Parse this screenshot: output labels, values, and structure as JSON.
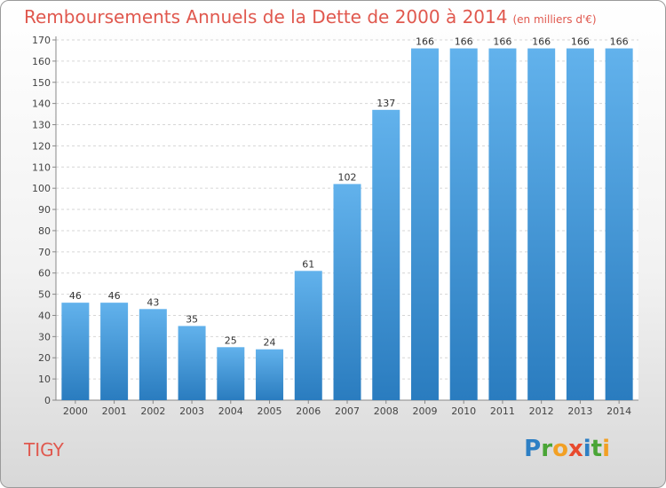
{
  "title": "Remboursements Annuels de la Dette de 2000 à 2014",
  "subtitle": "(en milliers d'€)",
  "commune": "TIGY",
  "logo": {
    "letters": [
      "P",
      "r",
      "o",
      "x",
      "i",
      "t",
      "i"
    ],
    "colors": [
      "#2d7fc4",
      "#4aa536",
      "#f2a024",
      "#e84a2e",
      "#2d7fc4",
      "#4aa536",
      "#f2a024"
    ]
  },
  "colors": {
    "bar_light": "#62b2ec",
    "bar_dark": "#2a7cbf",
    "title": "#e0584e"
  },
  "chart_data": {
    "type": "bar",
    "categories": [
      "2000",
      "2001",
      "2002",
      "2003",
      "2004",
      "2005",
      "2006",
      "2007",
      "2008",
      "2009",
      "2010",
      "2011",
      "2012",
      "2013",
      "2014"
    ],
    "values": [
      46,
      46,
      43,
      35,
      25,
      24,
      61,
      102,
      137,
      166,
      166,
      166,
      166,
      166,
      166
    ],
    "ylim": [
      0,
      170
    ],
    "yticks": [
      0,
      10,
      20,
      30,
      40,
      50,
      60,
      70,
      80,
      90,
      100,
      110,
      120,
      130,
      140,
      150,
      160,
      170
    ],
    "grid": true,
    "xlabel": "",
    "ylabel": ""
  }
}
